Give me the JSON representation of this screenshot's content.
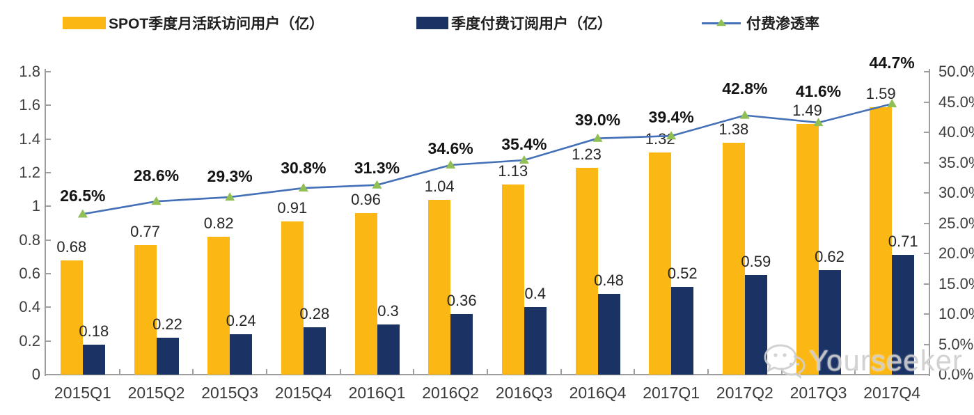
{
  "chart_data": {
    "type": "bar+line",
    "title": "",
    "categories": [
      "2015Q1",
      "2015Q2",
      "2015Q3",
      "2015Q4",
      "2016Q1",
      "2016Q2",
      "2016Q3",
      "2016Q4",
      "2017Q1",
      "2017Q2",
      "2017Q3",
      "2017Q4"
    ],
    "series": [
      {
        "name": "SPOT季度月活跃访问用户（亿）",
        "type": "bar",
        "axis": "left",
        "color": "#FBB815",
        "values": [
          0.68,
          0.77,
          0.82,
          0.91,
          0.96,
          1.04,
          1.13,
          1.23,
          1.32,
          1.38,
          1.49,
          1.59
        ],
        "labels": [
          "0.68",
          "0.77",
          "0.82",
          "0.91",
          "0.96",
          "1.04",
          "1.13",
          "1.23",
          "1.32",
          "1.38",
          "1.49",
          "1.59"
        ]
      },
      {
        "name": "季度付费订阅用户（亿）",
        "type": "bar",
        "axis": "left",
        "color": "#1B3264",
        "values": [
          0.18,
          0.22,
          0.24,
          0.28,
          0.3,
          0.36,
          0.4,
          0.48,
          0.52,
          0.59,
          0.62,
          0.71
        ],
        "labels": [
          "0.18",
          "0.22",
          "0.24",
          "0.28",
          "0.3",
          "0.36",
          "0.4",
          "0.48",
          "0.52",
          "0.59",
          "0.62",
          "0.71"
        ]
      },
      {
        "name": "付费渗透率",
        "type": "line",
        "axis": "right",
        "color": "#4470B8",
        "marker_color": "#8FBF55",
        "values": [
          26.5,
          28.6,
          29.3,
          30.8,
          31.3,
          34.6,
          35.4,
          39.0,
          39.4,
          42.8,
          41.6,
          44.7
        ],
        "labels": [
          "26.5%",
          "28.6%",
          "29.3%",
          "30.8%",
          "31.3%",
          "34.6%",
          "35.4%",
          "39.0%",
          "39.4%",
          "42.8%",
          "41.6%",
          "44.7%"
        ]
      }
    ],
    "axes": {
      "left": {
        "min": 0,
        "max": 1.8,
        "tick_labels": [
          "0",
          "0.2",
          "0.4",
          "0.6",
          "0.8",
          "1",
          "1.2",
          "1.4",
          "1.6",
          "1.8"
        ]
      },
      "right": {
        "min": 0,
        "max": 50,
        "tick_labels": [
          "0.0%",
          "5.0%",
          "10.0%",
          "15.0%",
          "20.0%",
          "25.0%",
          "30.0%",
          "35.0%",
          "40.0%",
          "45.0%",
          "50.0%"
        ]
      }
    },
    "legend_position": "top",
    "grid": false
  },
  "watermark": {
    "text": "Yourseeker",
    "icon": "wechat-icon"
  }
}
